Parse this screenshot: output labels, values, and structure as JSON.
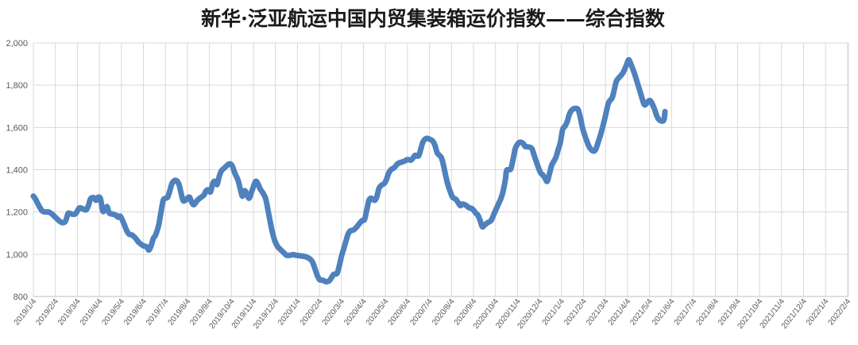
{
  "chart_data": {
    "type": "line",
    "title": "新华·泛亚航运中国内贸集装箱运价指数——综合指数",
    "xlabel": "",
    "ylabel": "",
    "ylim": [
      800,
      2000
    ],
    "yticks": [
      800,
      1000,
      1200,
      1400,
      1600,
      1800,
      2000
    ],
    "ytick_labels": [
      "800",
      "1,000",
      "1,200",
      "1,400",
      "1,600",
      "1,800",
      "2,000"
    ],
    "xtick_labels": [
      "2019/1/4",
      "2019/2/4",
      "2019/3/4",
      "2019/4/4",
      "2019/5/4",
      "2019/6/4",
      "2019/7/4",
      "2019/8/4",
      "2019/9/4",
      "2019/10/4",
      "2019/11/4",
      "2019/12/4",
      "2020/1/4",
      "2020/2/4",
      "2020/3/4",
      "2020/4/4",
      "2020/5/4",
      "2020/6/4",
      "2020/7/4",
      "2020/8/4",
      "2020/9/4",
      "2020/10/4",
      "2020/11/4",
      "2020/12/4",
      "2021/1/4",
      "2021/2/4",
      "2021/3/4",
      "2021/4/4",
      "2021/5/4",
      "2021/6/4",
      "2021/7/4",
      "2021/8/4",
      "2021/9/4",
      "2021/10/4",
      "2021/11/4",
      "2021/12/4",
      "2022/1/4",
      "2022/2/4"
    ],
    "grid": "vertical and horizontal",
    "legend": "none",
    "line_color": "#4f81bd",
    "series": [
      {
        "values": [
          [
            0,
            1275
          ],
          [
            0.1,
            1260
          ],
          [
            0.25,
            1230
          ],
          [
            0.4,
            1205
          ],
          [
            0.55,
            1200
          ],
          [
            0.7,
            1200
          ],
          [
            0.85,
            1190
          ],
          [
            1.0,
            1175
          ],
          [
            1.15,
            1160
          ],
          [
            1.3,
            1150
          ],
          [
            1.45,
            1155
          ],
          [
            1.55,
            1185
          ],
          [
            1.6,
            1195
          ],
          [
            1.75,
            1190
          ],
          [
            1.9,
            1190
          ],
          [
            2.0,
            1205
          ],
          [
            2.1,
            1220
          ],
          [
            2.25,
            1215
          ],
          [
            2.4,
            1210
          ],
          [
            2.5,
            1230
          ],
          [
            2.6,
            1262
          ],
          [
            2.75,
            1268
          ],
          [
            2.85,
            1255
          ],
          [
            2.95,
            1270
          ],
          [
            3.05,
            1262
          ],
          [
            3.15,
            1205
          ],
          [
            3.25,
            1210
          ],
          [
            3.35,
            1225
          ],
          [
            3.45,
            1195
          ],
          [
            3.6,
            1190
          ],
          [
            3.75,
            1185
          ],
          [
            3.85,
            1175
          ],
          [
            3.95,
            1180
          ],
          [
            4.05,
            1160
          ],
          [
            4.15,
            1135
          ],
          [
            4.25,
            1110
          ],
          [
            4.35,
            1095
          ],
          [
            4.5,
            1090
          ],
          [
            4.65,
            1075
          ],
          [
            4.8,
            1055
          ],
          [
            5.0,
            1040
          ],
          [
            5.15,
            1035
          ],
          [
            5.25,
            1020
          ],
          [
            5.35,
            1040
          ],
          [
            5.45,
            1075
          ],
          [
            5.55,
            1090
          ],
          [
            5.7,
            1140
          ],
          [
            5.8,
            1200
          ],
          [
            5.9,
            1255
          ],
          [
            6.0,
            1265
          ],
          [
            6.1,
            1270
          ],
          [
            6.2,
            1300
          ],
          [
            6.3,
            1335
          ],
          [
            6.45,
            1350
          ],
          [
            6.6,
            1335
          ],
          [
            6.7,
            1295
          ],
          [
            6.8,
            1255
          ],
          [
            6.9,
            1255
          ],
          [
            7.0,
            1265
          ],
          [
            7.1,
            1270
          ],
          [
            7.2,
            1245
          ],
          [
            7.3,
            1235
          ],
          [
            7.45,
            1255
          ],
          [
            7.6,
            1268
          ],
          [
            7.75,
            1280
          ],
          [
            7.85,
            1300
          ],
          [
            7.95,
            1305
          ],
          [
            8.05,
            1295
          ],
          [
            8.15,
            1335
          ],
          [
            8.25,
            1345
          ],
          [
            8.35,
            1330
          ],
          [
            8.45,
            1370
          ],
          [
            8.55,
            1395
          ],
          [
            8.7,
            1410
          ],
          [
            8.85,
            1425
          ],
          [
            8.95,
            1428
          ],
          [
            9.05,
            1415
          ],
          [
            9.15,
            1385
          ],
          [
            9.3,
            1350
          ],
          [
            9.4,
            1310
          ],
          [
            9.5,
            1275
          ],
          [
            9.6,
            1300
          ],
          [
            9.7,
            1285
          ],
          [
            9.8,
            1265
          ],
          [
            9.9,
            1290
          ],
          [
            10.0,
            1320
          ],
          [
            10.1,
            1345
          ],
          [
            10.2,
            1335
          ],
          [
            10.3,
            1310
          ],
          [
            10.4,
            1295
          ],
          [
            10.55,
            1265
          ],
          [
            10.65,
            1215
          ],
          [
            10.75,
            1160
          ],
          [
            10.85,
            1110
          ],
          [
            10.95,
            1070
          ],
          [
            11.05,
            1045
          ],
          [
            11.15,
            1030
          ],
          [
            11.25,
            1020
          ],
          [
            11.4,
            1005
          ],
          [
            11.5,
            995
          ],
          [
            11.65,
            995
          ],
          [
            11.8,
            998
          ],
          [
            11.95,
            995
          ],
          [
            12.1,
            993
          ],
          [
            12.3,
            990
          ],
          [
            12.45,
            985
          ],
          [
            12.6,
            975
          ],
          [
            12.7,
            960
          ],
          [
            12.8,
            930
          ],
          [
            12.9,
            900
          ],
          [
            13.0,
            880
          ],
          [
            13.1,
            878
          ],
          [
            13.2,
            875
          ],
          [
            13.3,
            870
          ],
          [
            13.45,
            875
          ],
          [
            13.55,
            890
          ],
          [
            13.65,
            905
          ],
          [
            13.8,
            910
          ],
          [
            13.9,
            945
          ],
          [
            14.0,
            990
          ],
          [
            14.1,
            1025
          ],
          [
            14.2,
            1060
          ],
          [
            14.3,
            1095
          ],
          [
            14.4,
            1110
          ],
          [
            14.55,
            1115
          ],
          [
            14.7,
            1130
          ],
          [
            14.85,
            1150
          ],
          [
            14.95,
            1160
          ],
          [
            15.05,
            1165
          ],
          [
            15.15,
            1210
          ],
          [
            15.25,
            1255
          ],
          [
            15.35,
            1265
          ],
          [
            15.5,
            1255
          ],
          [
            15.6,
            1270
          ],
          [
            15.7,
            1310
          ],
          [
            15.8,
            1325
          ],
          [
            15.95,
            1335
          ],
          [
            16.05,
            1355
          ],
          [
            16.15,
            1385
          ],
          [
            16.25,
            1400
          ],
          [
            16.4,
            1410
          ],
          [
            16.55,
            1428
          ],
          [
            16.7,
            1435
          ],
          [
            16.85,
            1440
          ],
          [
            17.0,
            1448
          ],
          [
            17.15,
            1445
          ],
          [
            17.25,
            1455
          ],
          [
            17.35,
            1468
          ],
          [
            17.5,
            1465
          ],
          [
            17.6,
            1495
          ],
          [
            17.7,
            1530
          ],
          [
            17.85,
            1548
          ],
          [
            18.0,
            1545
          ],
          [
            18.15,
            1535
          ],
          [
            18.25,
            1515
          ],
          [
            18.35,
            1480
          ],
          [
            18.45,
            1468
          ],
          [
            18.55,
            1455
          ],
          [
            18.65,
            1415
          ],
          [
            18.75,
            1365
          ],
          [
            18.85,
            1325
          ],
          [
            18.95,
            1295
          ],
          [
            19.05,
            1270
          ],
          [
            19.2,
            1260
          ],
          [
            19.3,
            1245
          ],
          [
            19.4,
            1230
          ],
          [
            19.5,
            1238
          ],
          [
            19.65,
            1232
          ],
          [
            19.8,
            1220
          ],
          [
            19.95,
            1215
          ],
          [
            20.1,
            1195
          ],
          [
            20.2,
            1185
          ],
          [
            20.3,
            1160
          ],
          [
            20.4,
            1130
          ],
          [
            20.5,
            1138
          ],
          [
            20.65,
            1150
          ],
          [
            20.8,
            1160
          ],
          [
            20.95,
            1195
          ],
          [
            21.1,
            1230
          ],
          [
            21.25,
            1265
          ],
          [
            21.35,
            1300
          ],
          [
            21.45,
            1355
          ],
          [
            21.5,
            1395
          ],
          [
            21.6,
            1400
          ],
          [
            21.7,
            1405
          ],
          [
            21.8,
            1450
          ],
          [
            21.9,
            1500
          ],
          [
            22.0,
            1520
          ],
          [
            22.1,
            1530
          ],
          [
            22.25,
            1525
          ],
          [
            22.35,
            1510
          ],
          [
            22.5,
            1508
          ],
          [
            22.65,
            1500
          ],
          [
            22.75,
            1470
          ],
          [
            22.85,
            1440
          ],
          [
            22.95,
            1410
          ],
          [
            23.05,
            1385
          ],
          [
            23.15,
            1375
          ],
          [
            23.25,
            1360
          ],
          [
            23.35,
            1345
          ],
          [
            23.45,
            1380
          ],
          [
            23.55,
            1420
          ],
          [
            23.65,
            1440
          ],
          [
            23.75,
            1460
          ],
          [
            23.85,
            1495
          ],
          [
            23.95,
            1530
          ],
          [
            24.05,
            1590
          ],
          [
            24.15,
            1605
          ],
          [
            24.25,
            1625
          ],
          [
            24.35,
            1660
          ],
          [
            24.45,
            1680
          ],
          [
            24.6,
            1690
          ],
          [
            24.75,
            1685
          ],
          [
            24.85,
            1650
          ],
          [
            24.95,
            1600
          ],
          [
            25.05,
            1565
          ],
          [
            25.15,
            1535
          ],
          [
            25.25,
            1510
          ],
          [
            25.35,
            1495
          ],
          [
            25.45,
            1488
          ],
          [
            25.55,
            1495
          ],
          [
            25.65,
            1525
          ],
          [
            25.8,
            1575
          ],
          [
            25.95,
            1635
          ],
          [
            26.05,
            1680
          ],
          [
            26.15,
            1720
          ],
          [
            26.3,
            1740
          ],
          [
            26.4,
            1780
          ],
          [
            26.5,
            1820
          ],
          [
            26.65,
            1840
          ],
          [
            26.8,
            1860
          ],
          [
            26.95,
            1895
          ],
          [
            27.05,
            1920
          ],
          [
            27.15,
            1900
          ],
          [
            27.3,
            1860
          ],
          [
            27.45,
            1810
          ],
          [
            27.6,
            1760
          ],
          [
            27.75,
            1710
          ],
          [
            27.85,
            1712
          ],
          [
            27.95,
            1725
          ],
          [
            28.05,
            1725
          ],
          [
            28.15,
            1705
          ],
          [
            28.25,
            1680
          ],
          [
            28.35,
            1650
          ],
          [
            28.5,
            1632
          ],
          [
            28.65,
            1635
          ],
          [
            28.7,
            1675
          ]
        ]
      }
    ]
  }
}
